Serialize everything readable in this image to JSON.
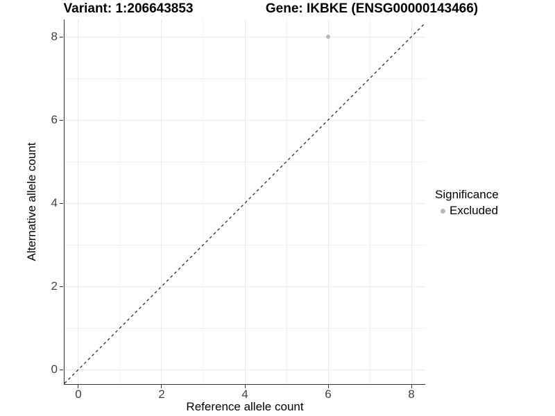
{
  "titles": {
    "variant": "Variant: 1:206643853",
    "gene": "Gene: IKBKE (ENSG00000143466)"
  },
  "chart_data": {
    "type": "scatter",
    "title_variant": "Variant: 1:206643853",
    "title_gene": "Gene: IKBKE (ENSG00000143466)",
    "xlabel": "Reference allele count",
    "ylabel": "Alternative allele count",
    "xlim": [
      -0.3333,
      8.3333
    ],
    "ylim": [
      -0.35,
      8.4167
    ],
    "x_ticks": [
      0,
      2,
      4,
      6,
      8
    ],
    "y_ticks": [
      0,
      2,
      4,
      6,
      8
    ],
    "x_minor_gridlines": [
      1,
      3,
      5,
      7
    ],
    "y_minor_gridlines": [
      1,
      3,
      5,
      7
    ],
    "grid": "on",
    "points": [
      {
        "x": 6,
        "y": 8,
        "series": "Excluded"
      }
    ],
    "reference_line": {
      "kind": "abline",
      "slope": 1,
      "intercept": 0,
      "style": "dashed",
      "color": "#1a1a1a"
    },
    "legend": {
      "title": "Significance",
      "position": "right",
      "items": [
        {
          "label": "Excluded",
          "color": "#b8b8b8"
        }
      ]
    }
  },
  "colors": {
    "point": "#b8b8b8",
    "grid_major": "#e9e9e9",
    "grid_minor": "#f1f1f1",
    "axis": "#333333",
    "tick_label": "#404040",
    "background": "#ffffff"
  }
}
